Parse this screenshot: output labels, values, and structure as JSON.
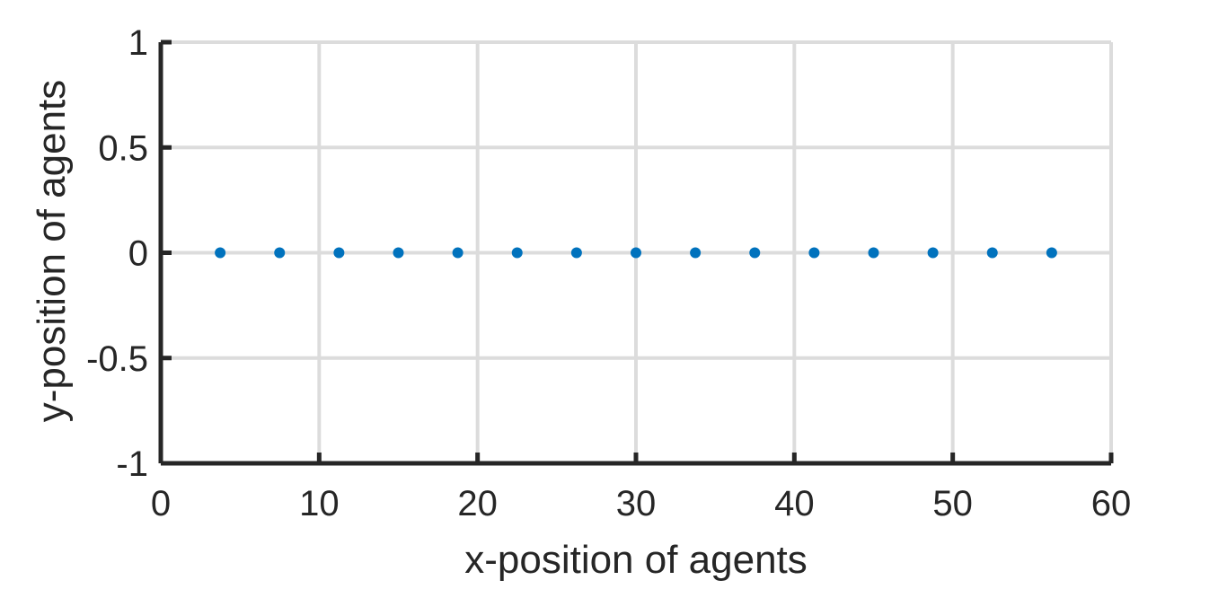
{
  "chart_data": {
    "type": "scatter",
    "xlabel": "x-position of agents",
    "ylabel": "y-position of agents",
    "xlim": [
      0,
      60
    ],
    "ylim": [
      -1,
      1
    ],
    "xticks": [
      0,
      10,
      20,
      30,
      40,
      50,
      60
    ],
    "yticks": [
      -1,
      -0.5,
      0,
      0.5,
      1
    ],
    "xtick_labels": [
      "0",
      "10",
      "20",
      "30",
      "40",
      "50",
      "60"
    ],
    "ytick_labels": [
      "-1",
      "-0.5",
      "0",
      "0.5",
      "1"
    ],
    "grid": true,
    "series": [
      {
        "color": "#0072BD",
        "points": [
          {
            "x": 3.75,
            "y": 0
          },
          {
            "x": 7.5,
            "y": 0
          },
          {
            "x": 11.25,
            "y": 0
          },
          {
            "x": 15,
            "y": 0
          },
          {
            "x": 18.75,
            "y": 0
          },
          {
            "x": 22.5,
            "y": 0
          },
          {
            "x": 26.25,
            "y": 0
          },
          {
            "x": 30,
            "y": 0
          },
          {
            "x": 33.75,
            "y": 0
          },
          {
            "x": 37.5,
            "y": 0
          },
          {
            "x": 41.25,
            "y": 0
          },
          {
            "x": 45,
            "y": 0
          },
          {
            "x": 48.75,
            "y": 0
          },
          {
            "x": 52.5,
            "y": 0
          },
          {
            "x": 56.25,
            "y": 0
          }
        ]
      }
    ]
  }
}
